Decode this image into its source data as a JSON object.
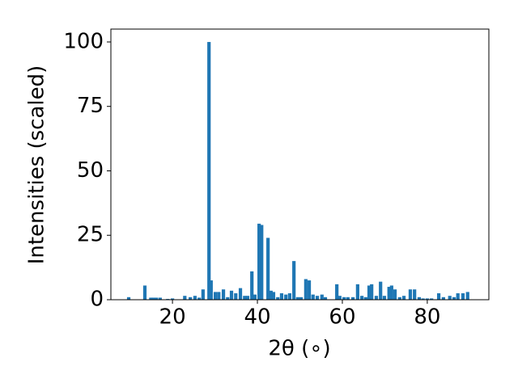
{
  "chart_data": {
    "type": "bar",
    "xlabel": "2θ (∘)",
    "ylabel": "Intensities (scaled)",
    "x": [
      9.7,
      13.5,
      14.9,
      15.5,
      16.2,
      17.1,
      18.9,
      20,
      22.9,
      24.2,
      25.3,
      26.3,
      27.2,
      28.6,
      29.1,
      30.1,
      30.9,
      32,
      33,
      33.9,
      34.9,
      36,
      37,
      37.7,
      38.7,
      39.4,
      40.4,
      41,
      42.5,
      43.2,
      43.8,
      44.8,
      45.7,
      46.7,
      47.6,
      48.6,
      49.5,
      50.3,
      51.4,
      52.2,
      53.1,
      54.1,
      55.2,
      56,
      58.7,
      59.4,
      60.4,
      61.3,
      62.5,
      63.6,
      64.6,
      65.5,
      66.3,
      66.9,
      68,
      69,
      69.9,
      71,
      71.6,
      72.4,
      73.5,
      74.5,
      76,
      77,
      78.1,
      79,
      80,
      81,
      82.7,
      83.8,
      85.3,
      86.3,
      87.2,
      88.4,
      89.5
    ],
    "values": [
      1,
      5.5,
      0.8,
      0.8,
      0.8,
      0.8,
      0.3,
      0.5,
      1.5,
      1,
      1.5,
      0.8,
      4,
      100,
      7.5,
      3,
      3,
      4,
      1,
      3.5,
      2.5,
      4.5,
      1.5,
      1.5,
      11,
      2,
      29.5,
      29,
      24,
      3.5,
      3,
      1,
      2.5,
      2,
      2.5,
      15,
      1,
      1,
      8,
      7.5,
      2,
      1.5,
      2,
      1,
      6,
      1.5,
      1,
      1,
      1,
      6,
      1.5,
      1,
      5.5,
      6,
      1.5,
      7,
      1.5,
      5,
      5.5,
      4,
      1,
      1.5,
      4,
      4,
      1,
      0.5,
      0.5,
      0.5,
      2.5,
      1,
      1.5,
      1,
      2.5,
      2.5,
      3
    ],
    "color": "#1f77b4",
    "xlim": [
      5.5,
      94.5
    ],
    "xticks": [
      20,
      40,
      60,
      80
    ],
    "ylim": [
      0,
      105
    ],
    "yticks": [
      0,
      25,
      50,
      75,
      100
    ]
  }
}
